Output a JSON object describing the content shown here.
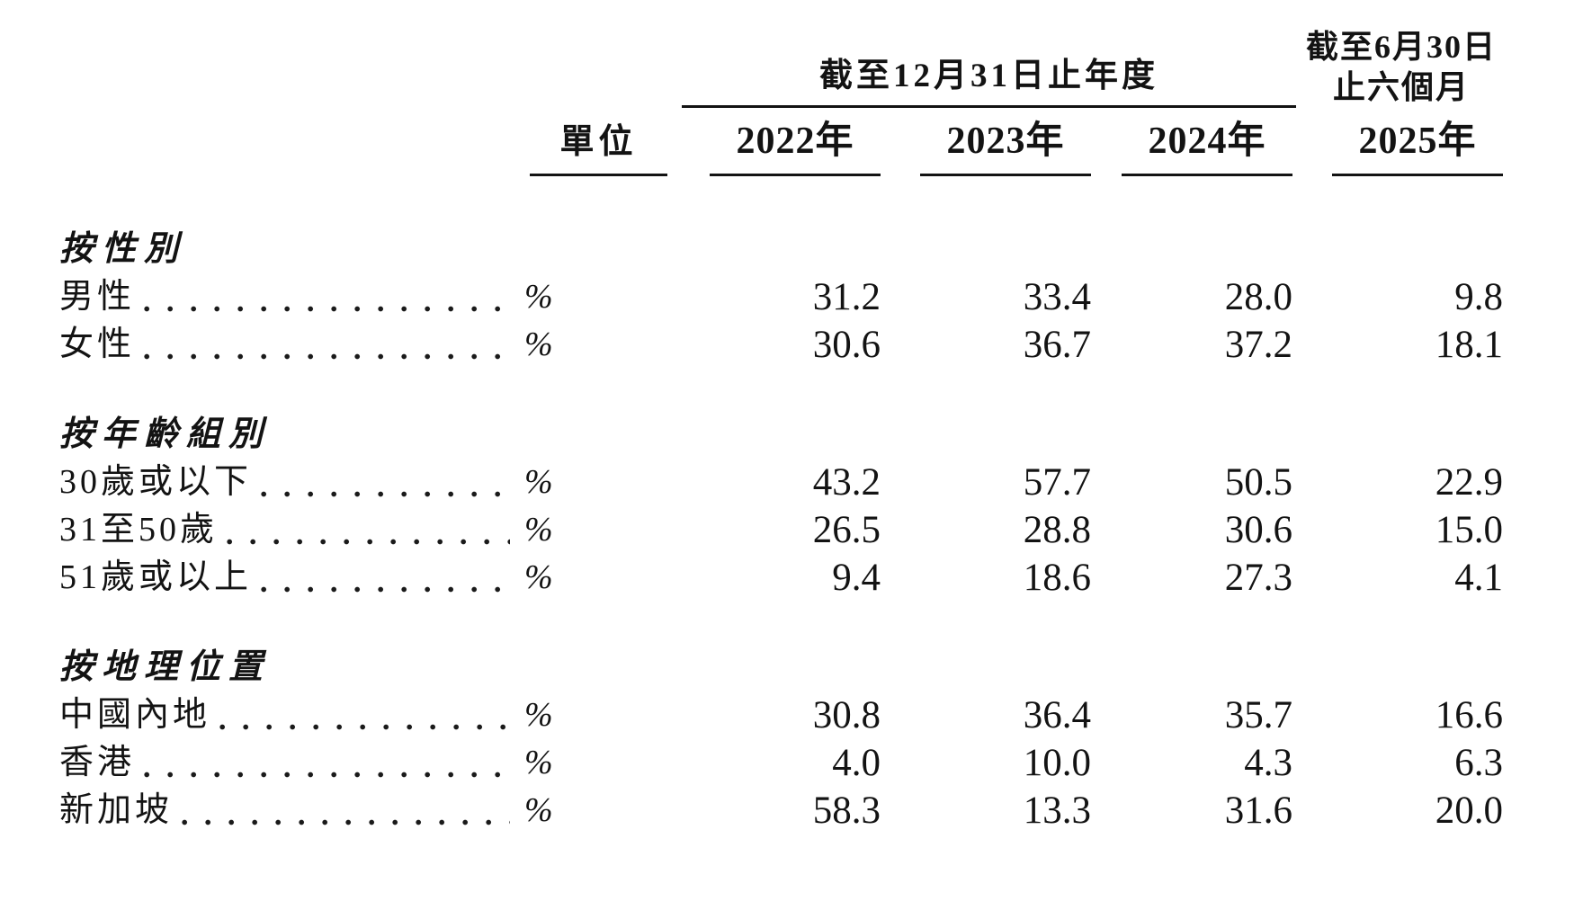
{
  "colors": {
    "text": "#131313",
    "background": "#ffffff",
    "rule": "#131313"
  },
  "table": {
    "header": {
      "annual_period_title": "截至12月31日止年度",
      "interim_period_line1": "截至6月30日",
      "interim_period_line2": "止六個月",
      "unit_label": "單位",
      "year_columns": [
        "2022年",
        "2023年",
        "2024年"
      ],
      "interim_year_column": "2025年"
    },
    "sections": [
      {
        "title": "按性別",
        "rows": [
          {
            "label": "男性",
            "unit": "%",
            "values": [
              "31.2",
              "33.4",
              "28.0",
              "9.8"
            ]
          },
          {
            "label": "女性",
            "unit": "%",
            "values": [
              "30.6",
              "36.7",
              "37.2",
              "18.1"
            ]
          }
        ]
      },
      {
        "title": "按年齡組別",
        "rows": [
          {
            "label": "30歲或以下",
            "unit": "%",
            "values": [
              "43.2",
              "57.7",
              "50.5",
              "22.9"
            ]
          },
          {
            "label": "31至50歲",
            "unit": "%",
            "values": [
              "26.5",
              "28.8",
              "30.6",
              "15.0"
            ]
          },
          {
            "label": "51歲或以上",
            "unit": "%",
            "values": [
              "9.4",
              "18.6",
              "27.3",
              "4.1"
            ]
          }
        ]
      },
      {
        "title": "按地理位置",
        "rows": [
          {
            "label": "中國內地",
            "unit": "%",
            "values": [
              "30.8",
              "36.4",
              "35.7",
              "16.6"
            ]
          },
          {
            "label": "香港",
            "unit": "%",
            "values": [
              "4.0",
              "10.0",
              "4.3",
              "6.3"
            ]
          },
          {
            "label": "新加坡",
            "unit": "%",
            "values": [
              "58.3",
              "13.3",
              "31.6",
              "20.0"
            ]
          }
        ]
      }
    ]
  }
}
